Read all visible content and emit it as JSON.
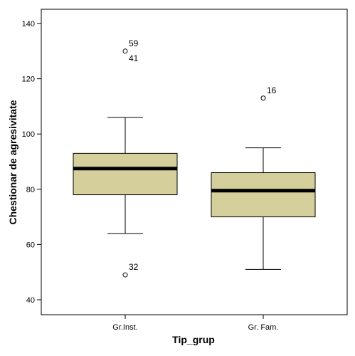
{
  "chart_data": {
    "type": "boxplot",
    "xlabel": "Tip_grup",
    "ylabel": "Chestionar de agresivitate",
    "ylim": [
      35,
      145
    ],
    "yticks": [
      40,
      60,
      80,
      100,
      120,
      140
    ],
    "grid": false,
    "colors": {
      "box_fill": "#d5d09b",
      "box_stroke": "#000000",
      "median": "#000000",
      "background": "#ffffff"
    },
    "groups": [
      {
        "category": "Gr.Inst.",
        "whisker_low": 64,
        "q1": 78,
        "median": 87.5,
        "q3": 93,
        "whisker_high": 106,
        "outliers": [
          {
            "value": 130,
            "labels": [
              "59",
              "41"
            ]
          },
          {
            "value": 49,
            "labels": [
              "32"
            ]
          }
        ]
      },
      {
        "category": "Gr. Fam.",
        "whisker_low": 51,
        "q1": 70,
        "median": 79.5,
        "q3": 86,
        "whisker_high": 95,
        "outliers": [
          {
            "value": 113,
            "labels": [
              "16"
            ]
          }
        ]
      }
    ]
  }
}
